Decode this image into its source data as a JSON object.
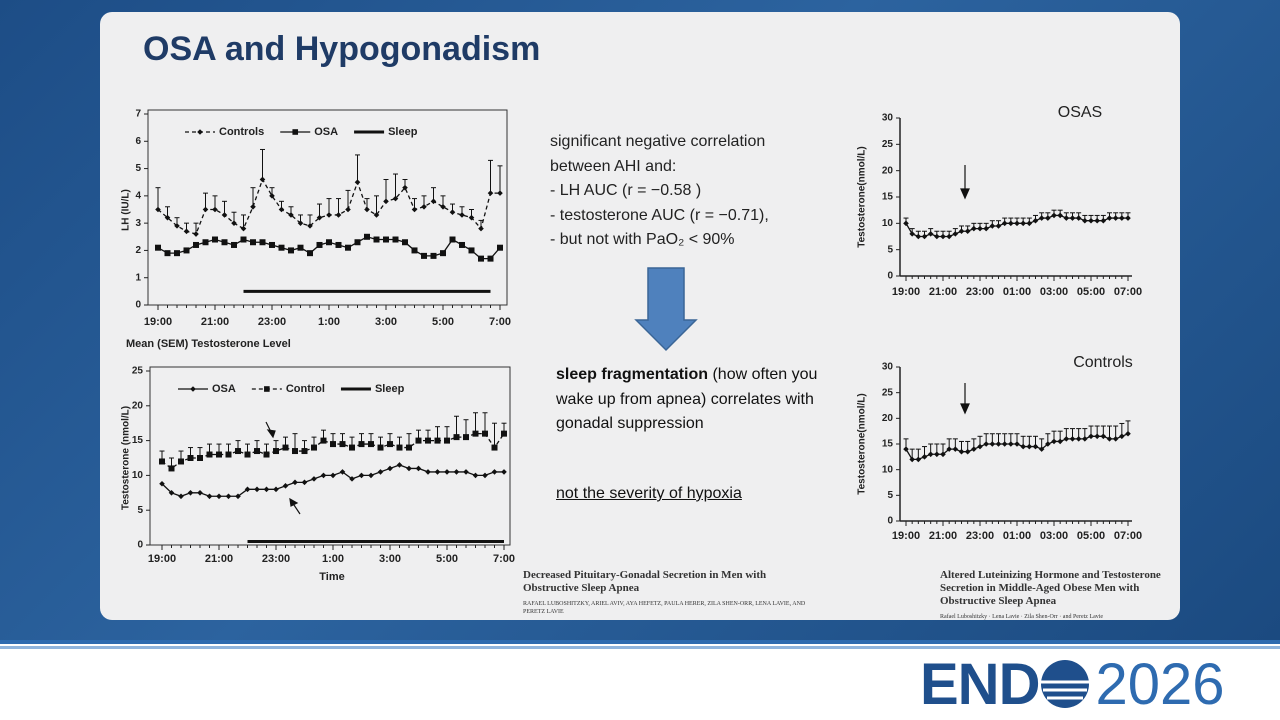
{
  "title": "OSA and Hypogonadism",
  "findings": [
    "significant negative correlation",
    "between AHI and:",
    "- LH AUC (r = −0.58 )",
    "- testosterone AUC (r = −0.71),",
    "- but not with PaO₂ < 90%"
  ],
  "conclusion": {
    "bold": "sleep fragmentation",
    "rest": " (how often you wake up from apnea) correlates with gonadal suppression",
    "note": "not the severity of hypoxia"
  },
  "citations": [
    {
      "title": "Decreased Pituitary-Gonadal Secretion in Men with Obstructive Sleep Apnea",
      "authors": "RAFAEL LUBOSHITZKY, ARIEL AVIV, AYA HEFETZ, PAULA HERER, ZILA SHEN-ORR, LENA LAVIE, AND PERETZ LAVIE"
    },
    {
      "title": "Altered Luteinizing Hormone and Testosterone Secretion in Middle-Aged Obese Men with Obstructive Sleep Apnea",
      "authors": "Rafael Luboshitzky · Lena Lavie · Zila Shen-Orr · and Peretz Lavie"
    }
  ],
  "logo": {
    "prefix": "END",
    "year": "2026"
  },
  "chart_data": [
    {
      "type": "line",
      "ylabel": "LH (IU/L)",
      "ylim": [
        0,
        7
      ],
      "yticks": [
        0,
        1,
        2,
        3,
        4,
        5,
        6,
        7
      ],
      "legend": true,
      "categories": [
        "19:00",
        null,
        null,
        null,
        null,
        null,
        "21:00",
        null,
        null,
        null,
        null,
        null,
        "23:00",
        null,
        null,
        null,
        null,
        null,
        "1:00",
        null,
        null,
        null,
        null,
        null,
        "3:00",
        null,
        null,
        null,
        null,
        null,
        "5:00",
        null,
        null,
        null,
        null,
        null,
        "7:00"
      ],
      "series": [
        {
          "name": "Controls",
          "color": "#111111",
          "marker": "diamond",
          "dash": true,
          "values": [
            3.5,
            3.2,
            2.9,
            2.7,
            2.6,
            3.5,
            3.5,
            3.3,
            3.0,
            2.8,
            3.6,
            4.6,
            4.0,
            3.5,
            3.3,
            3.0,
            2.9,
            3.2,
            3.3,
            3.3,
            3.5,
            4.5,
            3.5,
            3.3,
            3.8,
            3.9,
            4.3,
            3.5,
            3.6,
            3.8,
            3.6,
            3.4,
            3.3,
            3.2,
            2.8,
            4.1,
            4.1
          ],
          "errors": [
            0.8,
            0.4,
            0.3,
            0.3,
            0.4,
            0.6,
            0.5,
            0.5,
            0.4,
            0.5,
            0.7,
            1.1,
            0.3,
            0.3,
            0.3,
            0.3,
            0.4,
            0.5,
            0.6,
            0.6,
            0.7,
            1.0,
            0.4,
            0.7,
            0.8,
            0.9,
            0.3,
            0.4,
            0.4,
            0.5,
            0.4,
            0.3,
            0.3,
            0.3,
            0.3,
            1.2,
            1.0
          ]
        },
        {
          "name": "OSA",
          "color": "#111111",
          "marker": "square",
          "dash": false,
          "values": [
            2.1,
            1.9,
            1.9,
            2.0,
            2.2,
            2.3,
            2.4,
            2.3,
            2.2,
            2.4,
            2.3,
            2.3,
            2.2,
            2.1,
            2.0,
            2.1,
            1.9,
            2.2,
            2.3,
            2.2,
            2.1,
            2.3,
            2.5,
            2.4,
            2.4,
            2.4,
            2.3,
            2.0,
            1.8,
            1.8,
            1.9,
            2.4,
            2.2,
            2.0,
            1.7,
            1.7,
            2.1
          ]
        },
        {
          "name": "Sleep",
          "color": "#111111",
          "marker": "none",
          "dash": false,
          "width": 3,
          "values": [
            null,
            null,
            null,
            null,
            null,
            null,
            null,
            null,
            null,
            0.5,
            0.5,
            0.5,
            0.5,
            0.5,
            0.5,
            0.5,
            0.5,
            0.5,
            0.5,
            0.5,
            0.5,
            0.5,
            0.5,
            0.5,
            0.5,
            0.5,
            0.5,
            0.5,
            0.5,
            0.5,
            0.5,
            0.5,
            0.5,
            0.5,
            0.5,
            0.5,
            null
          ]
        }
      ]
    },
    {
      "type": "line",
      "title": "Mean (SEM) Testosterone Level",
      "xlabel": "Time",
      "ylabel": "Testosterone (nmol/L)",
      "ylim": [
        0,
        25
      ],
      "yticks": [
        0,
        5,
        10,
        15,
        20,
        25
      ],
      "legend": true,
      "categories": [
        "19:00",
        null,
        null,
        null,
        null,
        null,
        "21:00",
        null,
        null,
        null,
        null,
        null,
        "23:00",
        null,
        null,
        null,
        null,
        null,
        "1:00",
        null,
        null,
        null,
        null,
        null,
        "3:00",
        null,
        null,
        null,
        null,
        null,
        "5:00",
        null,
        null,
        null,
        null,
        null,
        "7:00"
      ],
      "series": [
        {
          "name": "OSA",
          "color": "#111111",
          "marker": "diamond",
          "dash": false,
          "values": [
            8.8,
            7.5,
            7,
            7.5,
            7.5,
            7,
            7,
            7,
            7,
            8,
            8,
            8,
            8,
            8.5,
            9,
            9,
            9.5,
            10,
            10,
            10.5,
            9.5,
            10,
            10,
            10.5,
            11,
            11.5,
            11,
            11,
            10.5,
            10.5,
            10.5,
            10.5,
            10.5,
            10,
            10,
            10.5,
            10.5
          ]
        },
        {
          "name": "Control",
          "color": "#111111",
          "marker": "square",
          "dash": true,
          "values": [
            12,
            11,
            12,
            12.5,
            12.5,
            13,
            13,
            13,
            13.5,
            13,
            13.5,
            13,
            13.5,
            14,
            13.5,
            13.5,
            14,
            15,
            14.5,
            14.5,
            14,
            14.5,
            14.5,
            14,
            14.5,
            14,
            14,
            15,
            15,
            15,
            15,
            15.5,
            15.5,
            16,
            16,
            14,
            16
          ],
          "errors": [
            1.5,
            1.5,
            1.5,
            1.5,
            1.5,
            1.5,
            1.5,
            1.5,
            1.5,
            1.5,
            1.5,
            1.5,
            1.5,
            1.5,
            2.5,
            1.5,
            1.5,
            1.5,
            1.5,
            1.5,
            1.5,
            1.5,
            1.5,
            1.5,
            1.5,
            1.5,
            2.0,
            1.5,
            1.5,
            2.0,
            2.0,
            3.0,
            2.5,
            3.0,
            3.0,
            3.5,
            1.5
          ]
        },
        {
          "name": "Sleep",
          "color": "#111111",
          "marker": "none",
          "dash": false,
          "width": 3,
          "values": [
            null,
            null,
            null,
            null,
            null,
            null,
            null,
            null,
            null,
            0.5,
            0.5,
            0.5,
            0.5,
            0.5,
            0.5,
            0.5,
            0.5,
            0.5,
            0.5,
            0.5,
            0.5,
            0.5,
            0.5,
            0.5,
            0.5,
            0.5,
            0.5,
            0.5,
            0.5,
            0.5,
            0.5,
            0.5,
            0.5,
            0.5,
            0.5,
            0.5,
            0.5
          ]
        }
      ]
    },
    {
      "type": "line",
      "title": "OSAS",
      "ylabel": "Testosterone(nmol/L)",
      "ylim": [
        0,
        30
      ],
      "yticks": [
        0,
        5,
        10,
        15,
        20,
        25,
        30
      ],
      "legend": false,
      "categories": [
        "19:00",
        null,
        null,
        null,
        null,
        null,
        "21:00",
        null,
        null,
        null,
        null,
        null,
        "23:00",
        null,
        null,
        null,
        null,
        null,
        "01:00",
        null,
        null,
        null,
        null,
        null,
        "03:00",
        null,
        null,
        null,
        null,
        null,
        "05:00",
        null,
        null,
        null,
        null,
        null,
        "07:00"
      ],
      "series": [
        {
          "color": "#111111",
          "marker": "diamond",
          "dash": false,
          "values": [
            10,
            8,
            7.5,
            7.5,
            8,
            7.5,
            7.5,
            7.5,
            8,
            8.5,
            8.5,
            9,
            9,
            9,
            9.5,
            9.5,
            10,
            10,
            10,
            10,
            10,
            10.5,
            11,
            11,
            11.5,
            11.5,
            11,
            11,
            11,
            10.5,
            10.5,
            10.5,
            10.5,
            11,
            11,
            11,
            11
          ],
          "errors": [
            1,
            1,
            1,
            1,
            1,
            1,
            1,
            1,
            1,
            1,
            1,
            1,
            1,
            1,
            1,
            1,
            1,
            1,
            1,
            1,
            1,
            1,
            1,
            1,
            1,
            1,
            1,
            1,
            1,
            1,
            1,
            1,
            1,
            1,
            1,
            1,
            1
          ]
        }
      ]
    },
    {
      "type": "line",
      "title": "Controls",
      "ylabel": "Testosterone(nmol/L)",
      "ylim": [
        0,
        30
      ],
      "yticks": [
        0,
        5,
        10,
        15,
        20,
        25,
        30
      ],
      "legend": false,
      "categories": [
        "19:00",
        null,
        null,
        null,
        null,
        null,
        "21:00",
        null,
        null,
        null,
        null,
        null,
        "23:00",
        null,
        null,
        null,
        null,
        null,
        "01:00",
        null,
        null,
        null,
        null,
        null,
        "03:00",
        null,
        null,
        null,
        null,
        null,
        "05:00",
        null,
        null,
        null,
        null,
        null,
        "07:00"
      ],
      "series": [
        {
          "color": "#111111",
          "marker": "diamond",
          "dash": false,
          "values": [
            14,
            12,
            12,
            12.5,
            13,
            13,
            13,
            14,
            14,
            13.5,
            13.5,
            14,
            14.5,
            15,
            15,
            15,
            15,
            15,
            15,
            14.5,
            14.5,
            14.5,
            14,
            15,
            15.5,
            15.5,
            16,
            16,
            16,
            16,
            16.5,
            16.5,
            16.5,
            16,
            16,
            16.5,
            17
          ],
          "errors": [
            2,
            2,
            2,
            2,
            2,
            2,
            2,
            2,
            2,
            2,
            2,
            2,
            2,
            2,
            2,
            2,
            2,
            2,
            2,
            2,
            2,
            2,
            2,
            2,
            2,
            2,
            2,
            2,
            2,
            2,
            2,
            2,
            2,
            2.5,
            2.5,
            2.5,
            2.5
          ]
        }
      ]
    }
  ]
}
